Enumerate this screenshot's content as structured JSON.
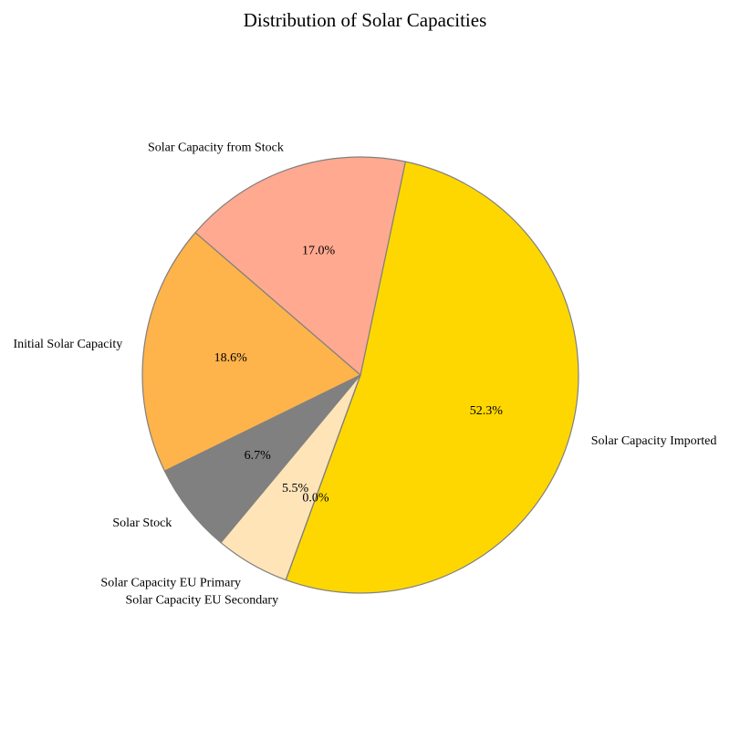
{
  "chart_data": {
    "type": "pie",
    "title": "Distribution of Solar Capacities",
    "start_angle_deg": 250,
    "direction": "counterclockwise",
    "edge_color": "#808080",
    "slices": [
      {
        "label": "Solar Capacity Imported",
        "percent": 52.3,
        "pct_label": "52.3%",
        "color": "#FFD700"
      },
      {
        "label": "Solar Capacity from Stock",
        "percent": 17.0,
        "pct_label": "17.0%",
        "color": "#FFA990"
      },
      {
        "label": "Initial Solar Capacity",
        "percent": 18.6,
        "pct_label": "18.6%",
        "color": "#FFB34B"
      },
      {
        "label": "Solar Stock",
        "percent": 6.7,
        "pct_label": "6.7%",
        "color": "#808080"
      },
      {
        "label": "Solar Capacity EU Primary",
        "percent": 5.5,
        "pct_label": "5.5%",
        "color": "#FFE4B8"
      },
      {
        "label": "Solar Capacity EU Secondary",
        "percent": 0.0,
        "pct_label": "0.0%",
        "color": "#FFFFFF"
      }
    ]
  }
}
